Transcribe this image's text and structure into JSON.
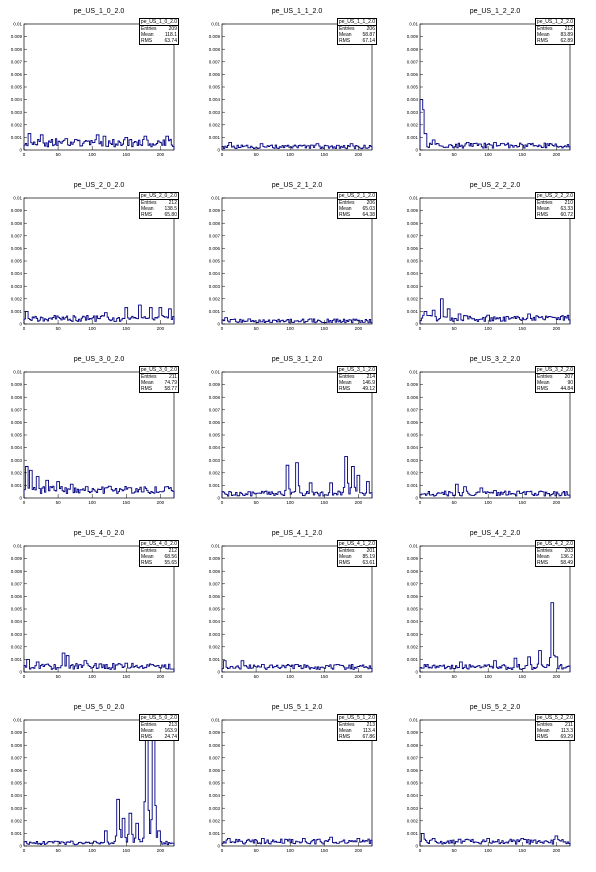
{
  "chart_data": [
    {
      "type": "histogram",
      "title": "pe_US_1_0_2.0",
      "xlim": [
        0,
        220
      ],
      "ylim": [
        0,
        0.01
      ],
      "stats": {
        "name": "pe_US_1_0_2.0",
        "entries": "209",
        "mean": "118.1",
        "rms": "63.74"
      },
      "pattern": {
        "base": 0.0005,
        "noise": 0.0006,
        "peaks": [
          [
            8,
            0.0013
          ],
          [
            26,
            0.0012
          ],
          [
            47,
            0.0009
          ],
          [
            62,
            0.0009
          ],
          [
            76,
            0.0008
          ],
          [
            108,
            0.0012
          ],
          [
            118,
            0.0011
          ],
          [
            150,
            0.001
          ],
          [
            178,
            0.0011
          ],
          [
            210,
            0.0011
          ]
        ]
      },
      "series_color": "#000080"
    },
    {
      "type": "histogram",
      "title": "pe_US_1_1_2.0",
      "xlim": [
        0,
        220
      ],
      "ylim": [
        0,
        0.01
      ],
      "stats": {
        "name": "pe_US_1_1_2.0",
        "entries": "206",
        "mean": "58.87",
        "rms": "67.14"
      },
      "pattern": {
        "base": 0.0002,
        "noise": 0.0003,
        "peaks": [
          [
            12,
            0.0006
          ],
          [
            58,
            0.0005
          ],
          [
            140,
            0.0005
          ],
          [
            190,
            0.0005
          ]
        ]
      },
      "series_color": "#000080"
    },
    {
      "type": "histogram",
      "title": "pe_US_1_2_2.0",
      "xlim": [
        0,
        220
      ],
      "ylim": [
        0,
        0.01
      ],
      "stats": {
        "name": "pe_US_1_2_2.0",
        "entries": "212",
        "mean": "83.89",
        "rms": "62.89"
      },
      "pattern": {
        "base": 0.0003,
        "noise": 0.0004,
        "peaks": [
          [
            2,
            0.004
          ],
          [
            4,
            0.0032
          ],
          [
            8,
            0.0013
          ],
          [
            20,
            0.0008
          ],
          [
            70,
            0.0006
          ],
          [
            110,
            0.0006
          ],
          [
            160,
            0.0005
          ]
        ]
      },
      "series_color": "#000080"
    },
    {
      "type": "histogram",
      "title": "pe_US_2_0_2.0",
      "xlim": [
        0,
        220
      ],
      "ylim": [
        0,
        0.01
      ],
      "stats": {
        "name": "pe_US_2_0_2.0",
        "entries": "212",
        "mean": "138.5",
        "rms": "65.80"
      },
      "pattern": {
        "base": 0.0004,
        "noise": 0.0005,
        "peaks": [
          [
            4,
            0.001
          ],
          [
            120,
            0.0009
          ],
          [
            150,
            0.0013
          ],
          [
            170,
            0.0015
          ],
          [
            186,
            0.0013
          ],
          [
            200,
            0.0013
          ],
          [
            214,
            0.0012
          ]
        ]
      },
      "series_color": "#000080"
    },
    {
      "type": "histogram",
      "title": "pe_US_2_1_2.0",
      "xlim": [
        0,
        220
      ],
      "ylim": [
        0,
        0.01
      ],
      "stats": {
        "name": "pe_US_2_1_2.0",
        "entries": "206",
        "mean": "65.03",
        "rms": "64.38"
      },
      "pattern": {
        "base": 0.0002,
        "noise": 0.0003,
        "peaks": [
          [
            6,
            0.0005
          ],
          [
            40,
            0.0004
          ],
          [
            130,
            0.0004
          ]
        ]
      },
      "series_color": "#000080"
    },
    {
      "type": "histogram",
      "title": "pe_US_2_2_2.0",
      "xlim": [
        0,
        220
      ],
      "ylim": [
        0,
        0.01
      ],
      "stats": {
        "name": "pe_US_2_2_2.0",
        "entries": "210",
        "mean": "63.33",
        "rms": "60.72"
      },
      "pattern": {
        "base": 0.0004,
        "noise": 0.0005,
        "peaks": [
          [
            8,
            0.001
          ],
          [
            20,
            0.0011
          ],
          [
            32,
            0.002
          ],
          [
            42,
            0.0012
          ],
          [
            58,
            0.0008
          ],
          [
            100,
            0.0007
          ],
          [
            160,
            0.0008
          ],
          [
            208,
            0.0006
          ]
        ]
      },
      "series_color": "#000080"
    },
    {
      "type": "histogram",
      "title": "pe_US_3_0_2.0",
      "xlim": [
        0,
        220
      ],
      "ylim": [
        0,
        0.01
      ],
      "stats": {
        "name": "pe_US_3_0_2.0",
        "entries": "211",
        "mean": "74.79",
        "rms": "58.77"
      },
      "pattern": {
        "base": 0.0007,
        "noise": 0.0006,
        "peaks": [
          [
            4,
            0.0025
          ],
          [
            10,
            0.0022
          ],
          [
            20,
            0.0017
          ],
          [
            34,
            0.0014
          ],
          [
            50,
            0.0013
          ],
          [
            70,
            0.0011
          ],
          [
            92,
            0.0009
          ],
          [
            120,
            0.0008
          ],
          [
            150,
            0.0007
          ],
          [
            200,
            0.0005
          ]
        ]
      },
      "series_color": "#000080"
    },
    {
      "type": "histogram",
      "title": "pe_US_3_1_2.0",
      "xlim": [
        0,
        220
      ],
      "ylim": [
        0,
        0.01
      ],
      "stats": {
        "name": "pe_US_3_1_2.0",
        "entries": "214",
        "mean": "146.9",
        "rms": "49.12"
      },
      "pattern": {
        "base": 0.0003,
        "noise": 0.0004,
        "peaks": [
          [
            96,
            0.0026
          ],
          [
            110,
            0.0028
          ],
          [
            130,
            0.0012
          ],
          [
            160,
            0.0012
          ],
          [
            182,
            0.0033
          ],
          [
            192,
            0.0025
          ],
          [
            200,
            0.0018
          ],
          [
            214,
            0.0013
          ]
        ]
      },
      "series_color": "#000080"
    },
    {
      "type": "histogram",
      "title": "pe_US_3_2_2.0",
      "xlim": [
        0,
        220
      ],
      "ylim": [
        0,
        0.01
      ],
      "stats": {
        "name": "pe_US_3_2_2.0",
        "entries": "207",
        "mean": "90",
        "rms": "44.84"
      },
      "pattern": {
        "base": 0.0003,
        "noise": 0.0004,
        "peaks": [
          [
            54,
            0.0011
          ],
          [
            66,
            0.0009
          ],
          [
            90,
            0.0008
          ],
          [
            110,
            0.0006
          ],
          [
            160,
            0.0005
          ]
        ]
      },
      "series_color": "#000080"
    },
    {
      "type": "histogram",
      "title": "pe_US_4_0_2.0",
      "xlim": [
        0,
        220
      ],
      "ylim": [
        0,
        0.01
      ],
      "stats": {
        "name": "pe_US_4_0_2.0",
        "entries": "212",
        "mean": "68.56",
        "rms": "55.65"
      },
      "pattern": {
        "base": 0.0004,
        "noise": 0.0005,
        "peaks": [
          [
            6,
            0.001
          ],
          [
            20,
            0.0008
          ],
          [
            58,
            0.0015
          ],
          [
            64,
            0.0013
          ],
          [
            90,
            0.0009
          ],
          [
            150,
            0.0007
          ],
          [
            190,
            0.0005
          ]
        ]
      },
      "series_color": "#000080"
    },
    {
      "type": "histogram",
      "title": "pe_US_4_1_2.0",
      "xlim": [
        0,
        220
      ],
      "ylim": [
        0,
        0.01
      ],
      "stats": {
        "name": "pe_US_4_1_2.0",
        "entries": "201",
        "mean": "85.19",
        "rms": "63.61"
      },
      "pattern": {
        "base": 0.0004,
        "noise": 0.0004,
        "peaks": [
          [
            4,
            0.0009
          ],
          [
            30,
            0.0009
          ],
          [
            60,
            0.0006
          ],
          [
            110,
            0.0006
          ],
          [
            170,
            0.0006
          ]
        ]
      },
      "series_color": "#000080"
    },
    {
      "type": "histogram",
      "title": "pe_US_4_2_2.0",
      "xlim": [
        0,
        220
      ],
      "ylim": [
        0,
        0.01
      ],
      "stats": {
        "name": "pe_US_4_2_2.0",
        "entries": "203",
        "mean": "136.2",
        "rms": "58.49"
      },
      "pattern": {
        "base": 0.0004,
        "noise": 0.0004,
        "peaks": [
          [
            60,
            0.0008
          ],
          [
            110,
            0.0009
          ],
          [
            140,
            0.0011
          ],
          [
            160,
            0.0012
          ],
          [
            176,
            0.0017
          ],
          [
            194,
            0.0055
          ],
          [
            200,
            0.0012
          ]
        ]
      },
      "series_color": "#000080"
    },
    {
      "type": "histogram",
      "title": "pe_US_5_0_2.0",
      "xlim": [
        0,
        220
      ],
      "ylim": [
        0,
        0.01
      ],
      "stats": {
        "name": "pe_US_5_0_2.0",
        "entries": "213",
        "mean": "163.9",
        "rms": "24.74"
      },
      "pattern": {
        "base": 0.0002,
        "noise": 0.0003,
        "peaks": [
          [
            120,
            0.0012
          ],
          [
            138,
            0.0037
          ],
          [
            146,
            0.0022
          ],
          [
            156,
            0.0026
          ],
          [
            166,
            0.0018
          ],
          [
            180,
            0.0105
          ],
          [
            190,
            0.0105
          ],
          [
            198,
            0.0012
          ]
        ]
      },
      "series_color": "#000080"
    },
    {
      "type": "histogram",
      "title": "pe_US_5_1_2.0",
      "xlim": [
        0,
        220
      ],
      "ylim": [
        0,
        0.01
      ],
      "stats": {
        "name": "pe_US_5_1_2.0",
        "entries": "213",
        "mean": "113.4",
        "rms": "67.86"
      },
      "pattern": {
        "base": 0.0003,
        "noise": 0.0004,
        "peaks": [
          [
            10,
            0.0006
          ],
          [
            60,
            0.0006
          ],
          [
            120,
            0.0006
          ],
          [
            160,
            0.0007
          ],
          [
            200,
            0.0006
          ]
        ]
      },
      "series_color": "#000080"
    },
    {
      "type": "histogram",
      "title": "pe_US_5_2_2.0",
      "xlim": [
        0,
        220
      ],
      "ylim": [
        0,
        0.01
      ],
      "stats": {
        "name": "pe_US_5_2_2.0",
        "entries": "211",
        "mean": "113.3",
        "rms": "69.29"
      },
      "pattern": {
        "base": 0.0003,
        "noise": 0.0004,
        "peaks": [
          [
            4,
            0.001
          ],
          [
            20,
            0.0006
          ],
          [
            100,
            0.0006
          ],
          [
            150,
            0.0006
          ],
          [
            200,
            0.0008
          ]
        ]
      },
      "series_color": "#000080"
    }
  ],
  "labels": {
    "entries": "Entries",
    "mean": "Mean",
    "rms": "RMS"
  },
  "xticks": [
    0,
    50,
    100,
    150,
    200
  ],
  "yticks": [
    "0",
    "0.001",
    "0.002",
    "0.003",
    "0.004",
    "0.005",
    "0.006",
    "0.007",
    "0.008",
    "0.009",
    "0.01"
  ]
}
